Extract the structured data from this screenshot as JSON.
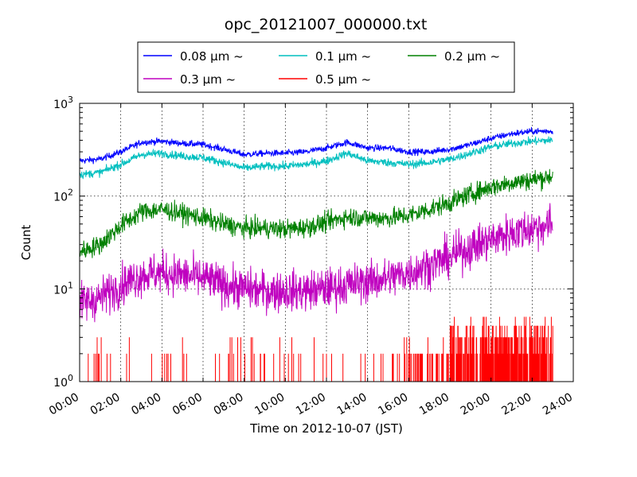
{
  "chart_data": {
    "type": "line",
    "title": "opc_20121007_000000.txt",
    "xlabel": "Time on 2012-10-07 (JST)",
    "ylabel": "Count",
    "x_ticks": [
      "00:00",
      "02:00",
      "04:00",
      "06:00",
      "08:00",
      "10:00",
      "12:00",
      "14:00",
      "16:00",
      "18:00",
      "20:00",
      "22:00",
      "24:00"
    ],
    "x_range_hours": [
      0,
      24
    ],
    "y_scale": "log",
    "ylim": [
      1,
      1000
    ],
    "y_ticks": [
      {
        "base": "10",
        "exp": "0"
      },
      {
        "base": "10",
        "exp": "1"
      },
      {
        "base": "10",
        "exp": "2"
      },
      {
        "base": "10",
        "exp": "3"
      }
    ],
    "grid": true,
    "legend_position": "top-center",
    "x": [
      "00:00",
      "01:00",
      "02:00",
      "03:00",
      "04:00",
      "05:00",
      "06:00",
      "07:00",
      "08:00",
      "09:00",
      "10:00",
      "11:00",
      "12:00",
      "13:00",
      "14:00",
      "15:00",
      "16:00",
      "17:00",
      "18:00",
      "19:00",
      "20:00",
      "21:00",
      "22:00",
      "23:00"
    ],
    "series": [
      {
        "name": "0.08 μm ~",
        "color": "#0000ff",
        "noise": 0.04,
        "values": [
          240,
          250,
          300,
          380,
          390,
          370,
          360,
          320,
          280,
          290,
          290,
          300,
          330,
          380,
          330,
          330,
          300,
          300,
          320,
          360,
          420,
          470,
          500,
          500
        ]
      },
      {
        "name": "0.1 μm ~",
        "color": "#00bfbf",
        "noise": 0.05,
        "values": [
          170,
          180,
          220,
          280,
          290,
          270,
          260,
          230,
          200,
          210,
          210,
          220,
          240,
          290,
          240,
          230,
          220,
          230,
          250,
          290,
          340,
          370,
          390,
          400
        ]
      },
      {
        "name": "0.2 μm ~",
        "color": "#008000",
        "noise": 0.12,
        "values": [
          25,
          30,
          48,
          68,
          72,
          65,
          58,
          50,
          45,
          45,
          44,
          46,
          52,
          60,
          58,
          58,
          62,
          72,
          85,
          105,
          125,
          140,
          150,
          165
        ]
      },
      {
        "name": "0.3 μm ~",
        "color": "#bf00bf",
        "noise": 0.25,
        "values": [
          7,
          8,
          11,
          14,
          15,
          14,
          13,
          11,
          10,
          9.5,
          9.5,
          9.5,
          10,
          11,
          12,
          13,
          15,
          18,
          22,
          28,
          34,
          40,
          45,
          50
        ]
      },
      {
        "name": "0.5 μm ~",
        "color": "#ff0000",
        "noise": 0,
        "values": [
          1,
          1,
          1,
          1,
          1,
          1,
          1,
          1,
          1,
          1,
          1,
          1,
          1,
          1,
          1,
          1,
          1,
          1.5,
          2,
          2,
          2,
          2.5,
          2.5,
          2.5
        ]
      }
    ]
  }
}
